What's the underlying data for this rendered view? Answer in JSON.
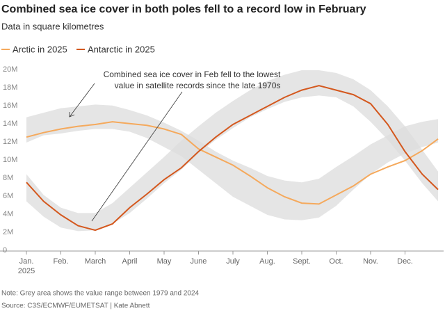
{
  "chart_data": {
    "type": "line",
    "title": "Combined sea ice cover in both poles fell to a record low in February",
    "subtitle": "Data in square kilometres",
    "x": [
      0,
      0.5,
      1,
      1.5,
      2,
      2.5,
      3,
      3.5,
      4,
      4.5,
      5,
      5.5,
      6,
      6.5,
      7,
      7.5,
      8,
      8.5,
      9,
      9.5,
      10,
      10.5,
      11,
      11.5,
      11.96
    ],
    "series": [
      {
        "name": "Arctic in 2025",
        "color": "#f5a95c",
        "values": [
          12.6,
          13.1,
          13.5,
          13.8,
          14.0,
          14.3,
          14.1,
          13.9,
          13.5,
          12.9,
          11.3,
          10.4,
          9.5,
          8.3,
          7.0,
          6.0,
          5.3,
          5.2,
          6.2,
          7.2,
          8.5,
          9.3,
          10.0,
          11.1,
          12.4
        ]
      },
      {
        "name": "Antarctic in 2025",
        "color": "#d4581e",
        "values": [
          7.6,
          5.5,
          4.0,
          2.8,
          2.3,
          3.0,
          4.8,
          6.3,
          7.9,
          9.2,
          11.0,
          12.6,
          14.0,
          15.0,
          16.0,
          17.0,
          17.8,
          18.3,
          17.8,
          17.3,
          16.3,
          14.0,
          11.0,
          8.5,
          6.8
        ]
      }
    ],
    "bands": [
      {
        "color": "#dcdcdc",
        "low": [
          12.0,
          12.8,
          13.0,
          13.3,
          13.5,
          13.5,
          13.2,
          12.5,
          11.5,
          10.5,
          9.0,
          7.5,
          6.0,
          5.0,
          4.0,
          3.5,
          3.4,
          3.7,
          5.0,
          6.8,
          8.5,
          9.8,
          10.8,
          11.5,
          12.0
        ],
        "high": [
          14.8,
          15.3,
          15.8,
          16.0,
          16.2,
          16.1,
          15.6,
          15.0,
          14.2,
          13.3,
          12.2,
          11.0,
          10.0,
          9.2,
          8.3,
          7.8,
          7.6,
          8.0,
          9.3,
          10.5,
          11.8,
          12.8,
          13.8,
          14.3,
          14.6
        ]
      },
      {
        "color": "#dcdcdc",
        "low": [
          5.5,
          3.8,
          2.6,
          2.2,
          2.3,
          3.0,
          4.2,
          5.8,
          7.5,
          9.0,
          10.8,
          12.3,
          13.6,
          14.8,
          15.7,
          16.5,
          17.0,
          17.2,
          17.0,
          16.0,
          14.3,
          12.3,
          10.0,
          7.5,
          5.5
        ],
        "high": [
          8.5,
          6.2,
          4.8,
          4.2,
          4.2,
          5.3,
          7.0,
          8.7,
          10.4,
          12.2,
          13.8,
          15.3,
          16.6,
          17.8,
          18.8,
          19.5,
          20.0,
          20.0,
          19.7,
          19.0,
          17.8,
          16.0,
          13.8,
          11.2,
          8.8
        ]
      }
    ],
    "xlim": [
      0,
      11.96
    ],
    "ylim": [
      0,
      20
    ],
    "xticks": [
      {
        "value": 0,
        "label": "Jan."
      },
      {
        "value": 1,
        "label": "Feb."
      },
      {
        "value": 2,
        "label": "March"
      },
      {
        "value": 3,
        "label": "April"
      },
      {
        "value": 4,
        "label": "May"
      },
      {
        "value": 5,
        "label": "June"
      },
      {
        "value": 6,
        "label": "July"
      },
      {
        "value": 7,
        "label": "Aug."
      },
      {
        "value": 8,
        "label": "Sept."
      },
      {
        "value": 9,
        "label": "Oct."
      },
      {
        "value": 10,
        "label": "Nov."
      },
      {
        "value": 11,
        "label": "Dec."
      }
    ],
    "year_label": "2025",
    "yticks": [
      0,
      {
        "value": 2,
        "label": "2M"
      },
      {
        "value": 4,
        "label": "4M"
      },
      {
        "value": 6,
        "label": "6M"
      },
      {
        "value": 8,
        "label": "8M"
      },
      {
        "value": 10,
        "label": "10M"
      },
      {
        "value": 12,
        "label": "12M"
      },
      {
        "value": 14,
        "label": "14M"
      },
      {
        "value": 16,
        "label": "16M"
      },
      {
        "value": 18,
        "label": "18M"
      },
      {
        "value": 20,
        "label": "20M"
      }
    ],
    "grid": false,
    "legend": "top-left",
    "annotation": [
      "Combined sea ice cover in Feb fell to the lowest",
      "value in satellite records since the late 1970s"
    ],
    "note": "Note: Grey area shows the value range between 1979 and 2024",
    "source": "Source: C3S/ECMWF/EUMETSAT | Kate Abnett"
  }
}
